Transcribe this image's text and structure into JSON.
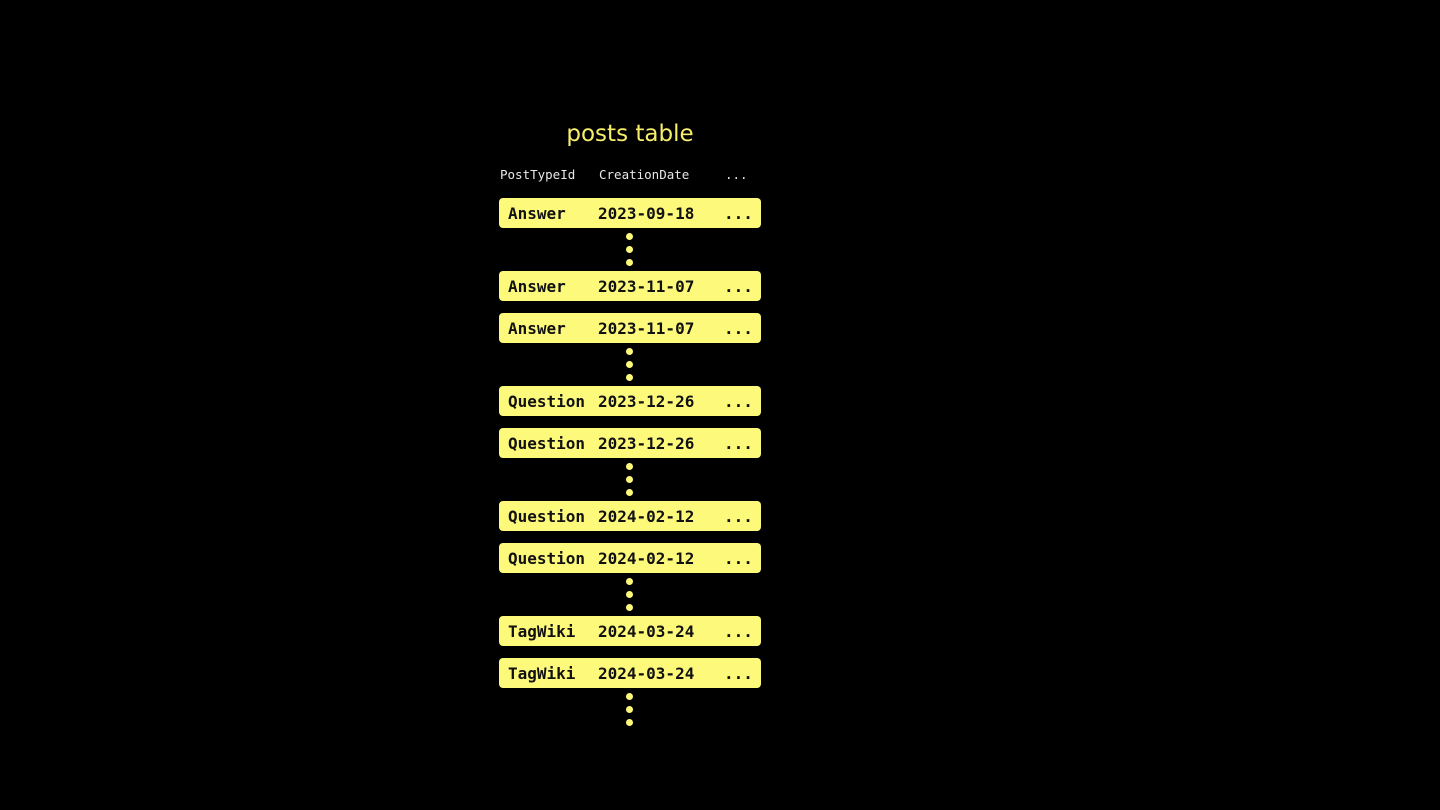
{
  "title": "posts table",
  "columns": [
    "PostTypeId",
    "CreationDate",
    "..."
  ],
  "groups": [
    [
      [
        "Answer",
        "2023-09-18",
        "..."
      ]
    ],
    [
      [
        "Answer",
        "2023-11-07",
        "..."
      ],
      [
        "Answer",
        "2023-11-07",
        "..."
      ]
    ],
    [
      [
        "Question",
        "2023-12-26",
        "..."
      ],
      [
        "Question",
        "2023-12-26",
        "..."
      ]
    ],
    [
      [
        "Question",
        "2024-02-12",
        "..."
      ],
      [
        "Question",
        "2024-02-12",
        "..."
      ]
    ],
    [
      [
        "TagWiki",
        "2024-03-24",
        "..."
      ],
      [
        "TagWiki",
        "2024-03-24",
        "..."
      ]
    ]
  ],
  "colors": {
    "accent": "#fdf97b",
    "background": "#000000"
  }
}
